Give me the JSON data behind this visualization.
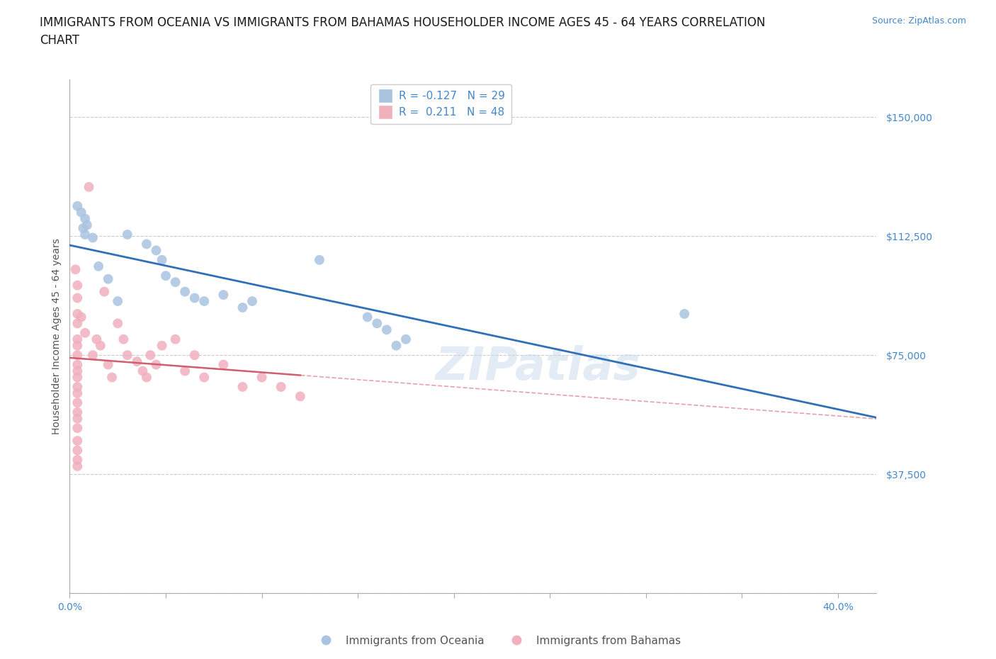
{
  "title_line1": "IMMIGRANTS FROM OCEANIA VS IMMIGRANTS FROM BAHAMAS HOUSEHOLDER INCOME AGES 45 - 64 YEARS CORRELATION",
  "title_line2": "CHART",
  "source_text": "Source: ZipAtlas.com",
  "ylabel": "Householder Income Ages 45 - 64 years",
  "xlim": [
    0.0,
    0.42
  ],
  "ylim": [
    0,
    162000
  ],
  "yticks": [
    0,
    37500,
    75000,
    112500,
    150000
  ],
  "xticks": [
    0.0,
    0.05,
    0.1,
    0.15,
    0.2,
    0.25,
    0.3,
    0.35,
    0.4
  ],
  "legend_oceania": "R = -0.127   N = 29",
  "legend_bahamas": "R =  0.211   N = 48",
  "watermark": "ZIPatlas",
  "oceania_color": "#aac4e0",
  "bahamas_color": "#f0b0be",
  "trend_oceania_color": "#3070b8",
  "trend_bahamas_color": "#d06070",
  "trend_bahamas_dashed_color": "#e8a0b0",
  "oceania_scatter": [
    [
      0.004,
      122000
    ],
    [
      0.006,
      120000
    ],
    [
      0.007,
      115000
    ],
    [
      0.008,
      118000
    ],
    [
      0.008,
      113000
    ],
    [
      0.009,
      116000
    ],
    [
      0.012,
      112000
    ],
    [
      0.015,
      103000
    ],
    [
      0.02,
      99000
    ],
    [
      0.025,
      92000
    ],
    [
      0.03,
      113000
    ],
    [
      0.04,
      110000
    ],
    [
      0.045,
      108000
    ],
    [
      0.048,
      105000
    ],
    [
      0.05,
      100000
    ],
    [
      0.055,
      98000
    ],
    [
      0.06,
      95000
    ],
    [
      0.065,
      93000
    ],
    [
      0.07,
      92000
    ],
    [
      0.08,
      94000
    ],
    [
      0.09,
      90000
    ],
    [
      0.095,
      92000
    ],
    [
      0.13,
      105000
    ],
    [
      0.155,
      87000
    ],
    [
      0.16,
      85000
    ],
    [
      0.165,
      83000
    ],
    [
      0.17,
      78000
    ],
    [
      0.175,
      80000
    ],
    [
      0.32,
      88000
    ]
  ],
  "bahamas_scatter": [
    [
      0.003,
      102000
    ],
    [
      0.004,
      97000
    ],
    [
      0.004,
      93000
    ],
    [
      0.004,
      88000
    ],
    [
      0.004,
      85000
    ],
    [
      0.004,
      80000
    ],
    [
      0.004,
      78000
    ],
    [
      0.004,
      75000
    ],
    [
      0.004,
      72000
    ],
    [
      0.004,
      70000
    ],
    [
      0.004,
      68000
    ],
    [
      0.004,
      65000
    ],
    [
      0.004,
      63000
    ],
    [
      0.004,
      60000
    ],
    [
      0.004,
      57000
    ],
    [
      0.004,
      55000
    ],
    [
      0.004,
      52000
    ],
    [
      0.004,
      48000
    ],
    [
      0.004,
      45000
    ],
    [
      0.004,
      42000
    ],
    [
      0.004,
      40000
    ],
    [
      0.006,
      87000
    ],
    [
      0.008,
      82000
    ],
    [
      0.01,
      128000
    ],
    [
      0.012,
      75000
    ],
    [
      0.014,
      80000
    ],
    [
      0.016,
      78000
    ],
    [
      0.018,
      95000
    ],
    [
      0.02,
      72000
    ],
    [
      0.022,
      68000
    ],
    [
      0.025,
      85000
    ],
    [
      0.028,
      80000
    ],
    [
      0.03,
      75000
    ],
    [
      0.035,
      73000
    ],
    [
      0.038,
      70000
    ],
    [
      0.04,
      68000
    ],
    [
      0.042,
      75000
    ],
    [
      0.045,
      72000
    ],
    [
      0.048,
      78000
    ],
    [
      0.055,
      80000
    ],
    [
      0.06,
      70000
    ],
    [
      0.065,
      75000
    ],
    [
      0.07,
      68000
    ],
    [
      0.08,
      72000
    ],
    [
      0.09,
      65000
    ],
    [
      0.1,
      68000
    ],
    [
      0.11,
      65000
    ],
    [
      0.12,
      62000
    ]
  ],
  "grid_color": "#cccccc",
  "background_color": "#ffffff",
  "tick_color": "#4488cc",
  "title_fontsize": 12,
  "axis_label_fontsize": 10,
  "tick_fontsize": 10,
  "legend_fontsize": 11
}
